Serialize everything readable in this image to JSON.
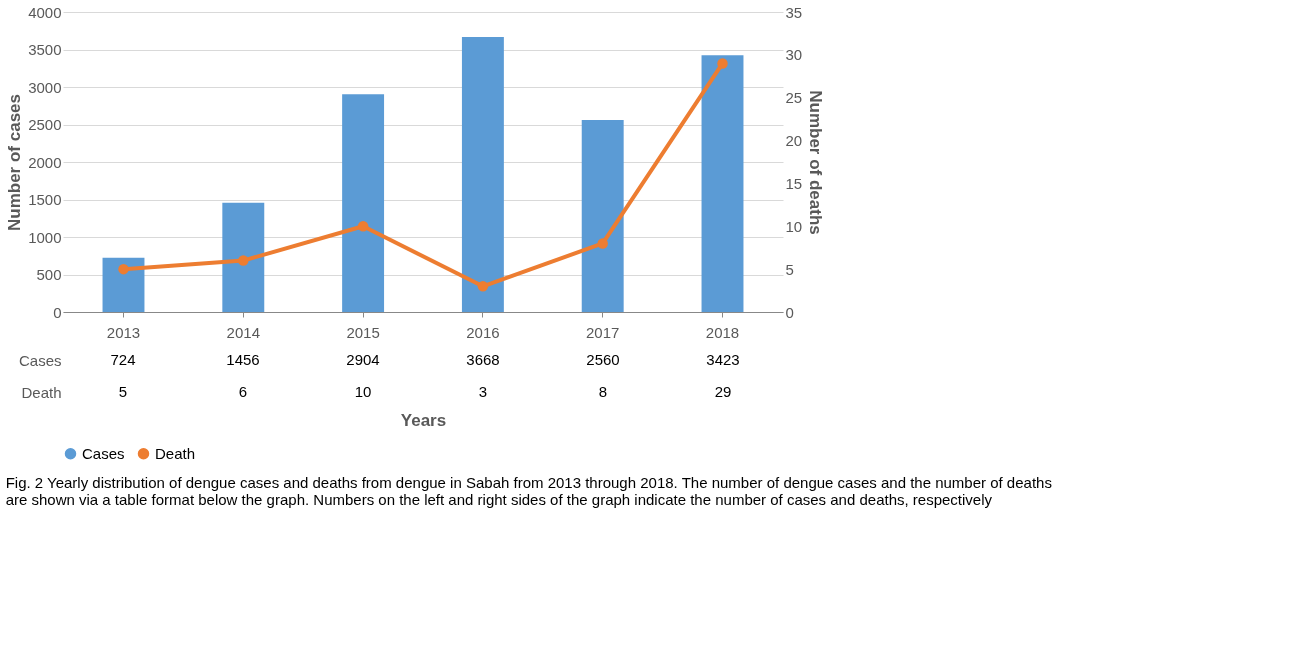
{
  "chart_data": {
    "type": "bar",
    "categories": [
      "2013",
      "2014",
      "2015",
      "2016",
      "2017",
      "2018"
    ],
    "series": [
      {
        "name": "Cases",
        "color": "#5b9bd5",
        "values": [
          724,
          1456,
          2904,
          3668,
          2560,
          3423
        ]
      },
      {
        "name": "Death",
        "type": "line",
        "axis": "y2",
        "color": "#ed7d31",
        "values": [
          5,
          6,
          10,
          3,
          8,
          29
        ]
      }
    ],
    "xlabel": "Years",
    "ylabel": "Number of cases",
    "y2label": "Number of deaths",
    "ylim": [
      0,
      4000
    ],
    "yticks": [
      0,
      500,
      1000,
      1500,
      2000,
      2500,
      3000,
      3500,
      4000
    ],
    "y2lim": [
      0,
      35
    ],
    "y2ticks": [
      0,
      5,
      10,
      15,
      20,
      25,
      30,
      35
    ],
    "grid": "y",
    "legend": "bottom",
    "marker": "circle",
    "line_style": "solid",
    "data_labels": true,
    "annotations": [
      "Fig. 2 Yearly distribution of dengue cases and deaths from dengue in Sabah from 2013 through 2018. The number of dengue cases and the number of deaths are shown via a table format below the graph. Numbers on the left and right sides of the graph indicate the number of cases and deaths, respectively"
    ]
  }
}
